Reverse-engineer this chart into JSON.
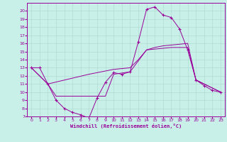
{
  "xlabel": "Windchill (Refroidissement éolien,°C)",
  "bg_color": "#c8f0e8",
  "line_color": "#990099",
  "grid_color": "#b0ddd0",
  "xlim": [
    -0.5,
    23.5
  ],
  "ylim": [
    7,
    21
  ],
  "xticks": [
    0,
    1,
    2,
    3,
    4,
    5,
    6,
    7,
    8,
    9,
    10,
    11,
    12,
    13,
    14,
    15,
    16,
    17,
    18,
    19,
    20,
    21,
    22,
    23
  ],
  "yticks": [
    7,
    8,
    9,
    10,
    11,
    12,
    13,
    14,
    15,
    16,
    17,
    18,
    19,
    20
  ],
  "line1_x": [
    0,
    1,
    2,
    3,
    4,
    5,
    6,
    7,
    8,
    9,
    10,
    11,
    12,
    13,
    14,
    15,
    16,
    17,
    18,
    19,
    20,
    21,
    22,
    23
  ],
  "line1_y": [
    13,
    13,
    11,
    9,
    8,
    7.5,
    7.2,
    6.8,
    9.3,
    11.2,
    12.4,
    12.2,
    12.5,
    16.2,
    20.2,
    20.5,
    19.5,
    19.2,
    17.8,
    15.2,
    11.5,
    10.8,
    10.2,
    10.0
  ],
  "line2_x": [
    0,
    2,
    3,
    7,
    9,
    10,
    12,
    14,
    17,
    19,
    20,
    22,
    23
  ],
  "line2_y": [
    13,
    11,
    9.5,
    9.5,
    9.5,
    12.2,
    12.5,
    15.2,
    15.5,
    15.5,
    11.5,
    10.5,
    10.0
  ],
  "line3_x": [
    0,
    2,
    7,
    10,
    12,
    13,
    14,
    15,
    16,
    17,
    18,
    19,
    20,
    22,
    23
  ],
  "line3_y": [
    13,
    11,
    12.2,
    12.8,
    13.0,
    14.0,
    15.2,
    15.5,
    15.7,
    15.8,
    15.9,
    16.0,
    11.5,
    10.5,
    10.0
  ]
}
